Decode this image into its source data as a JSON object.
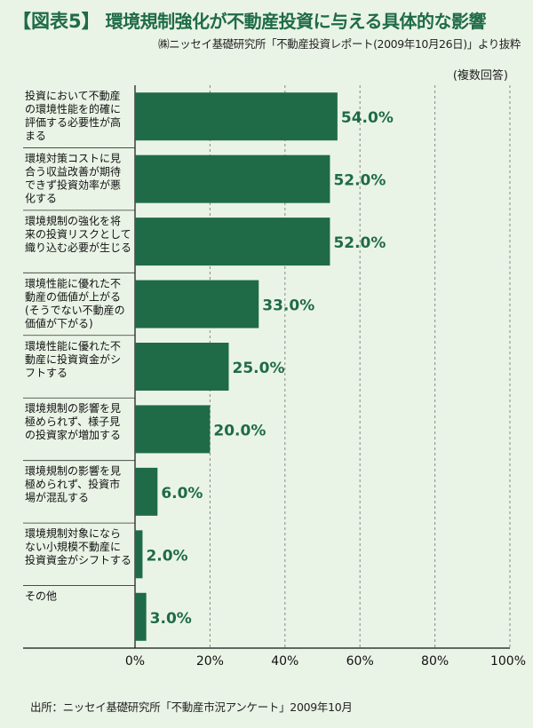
{
  "header": {
    "tag": "【図表5】",
    "title": "環境規制強化が不動産投資に与える具体的な影響",
    "subtitle": "㈱ニッセイ基礎研究所「不動産投資レポート(2009年10月26日)」より抜粋"
  },
  "note": "(複数回答)",
  "footer": "出所：ニッセイ基礎研究所「不動産市況アンケート」2009年10月",
  "colors": {
    "bar": "#1f6b47",
    "value_text": "#1f6b47",
    "background": "#eaf4e6",
    "grid": "#888888"
  },
  "chart_data": {
    "type": "bar",
    "orientation": "horizontal",
    "categories": [
      "投資において不動産の環境性能を的確に評価する必要性が高まる",
      "環境対策コストに見合う収益改善が期待できず投資効率が悪化する",
      "環境規制の強化を将来の投資リスクとして織り込む必要が生じる",
      "環境性能に優れた不動産の価値が上がる(そうでない不動産の価値が下がる)",
      "環境性能に優れた不動産に投資資金がシフトする",
      "環境規制の影響を見極められず、様子見の投資家が増加する",
      "環境規制の影響を見極められず、投資市場が混乱する",
      "環境規制対象にならない小規模不動産に投資資金がシフトする",
      "その他"
    ],
    "category_lines": [
      [
        "投資において不動産",
        "の環境性能を的確に",
        "評価する必要性が高",
        "まる"
      ],
      [
        "環境対策コストに見",
        "合う収益改善が期待",
        "できず投資効率が悪",
        "化する"
      ],
      [
        "環境規制の強化を将",
        "来の投資リスクとして",
        "織り込む必要が生じる"
      ],
      [
        "環境性能に優れた不",
        "動産の価値が上がる",
        "(そうでない不動産の",
        "価値が下がる)"
      ],
      [
        "環境性能に優れた不",
        "動産に投資資金がシ",
        "フトする"
      ],
      [
        "環境規制の影響を見",
        "極められず、様子見",
        "の投資家が増加する"
      ],
      [
        "環境規制の影響を見",
        "極められず、投資市",
        "場が混乱する"
      ],
      [
        "環境規制対象になら",
        "ない小規模不動産に",
        "投資資金がシフトする"
      ],
      [
        "その他"
      ]
    ],
    "values": [
      54.0,
      52.0,
      52.0,
      33.0,
      25.0,
      20.0,
      6.0,
      2.0,
      3.0
    ],
    "value_labels": [
      "54.0%",
      "52.0%",
      "52.0%",
      "33.0%",
      "25.0%",
      "20.0%",
      "6.0%",
      "2.0%",
      "3.0%"
    ],
    "x_ticks": [
      "0%",
      "20%",
      "40%",
      "60%",
      "80%",
      "100%"
    ],
    "xlim": [
      0,
      100
    ],
    "grid": true
  }
}
